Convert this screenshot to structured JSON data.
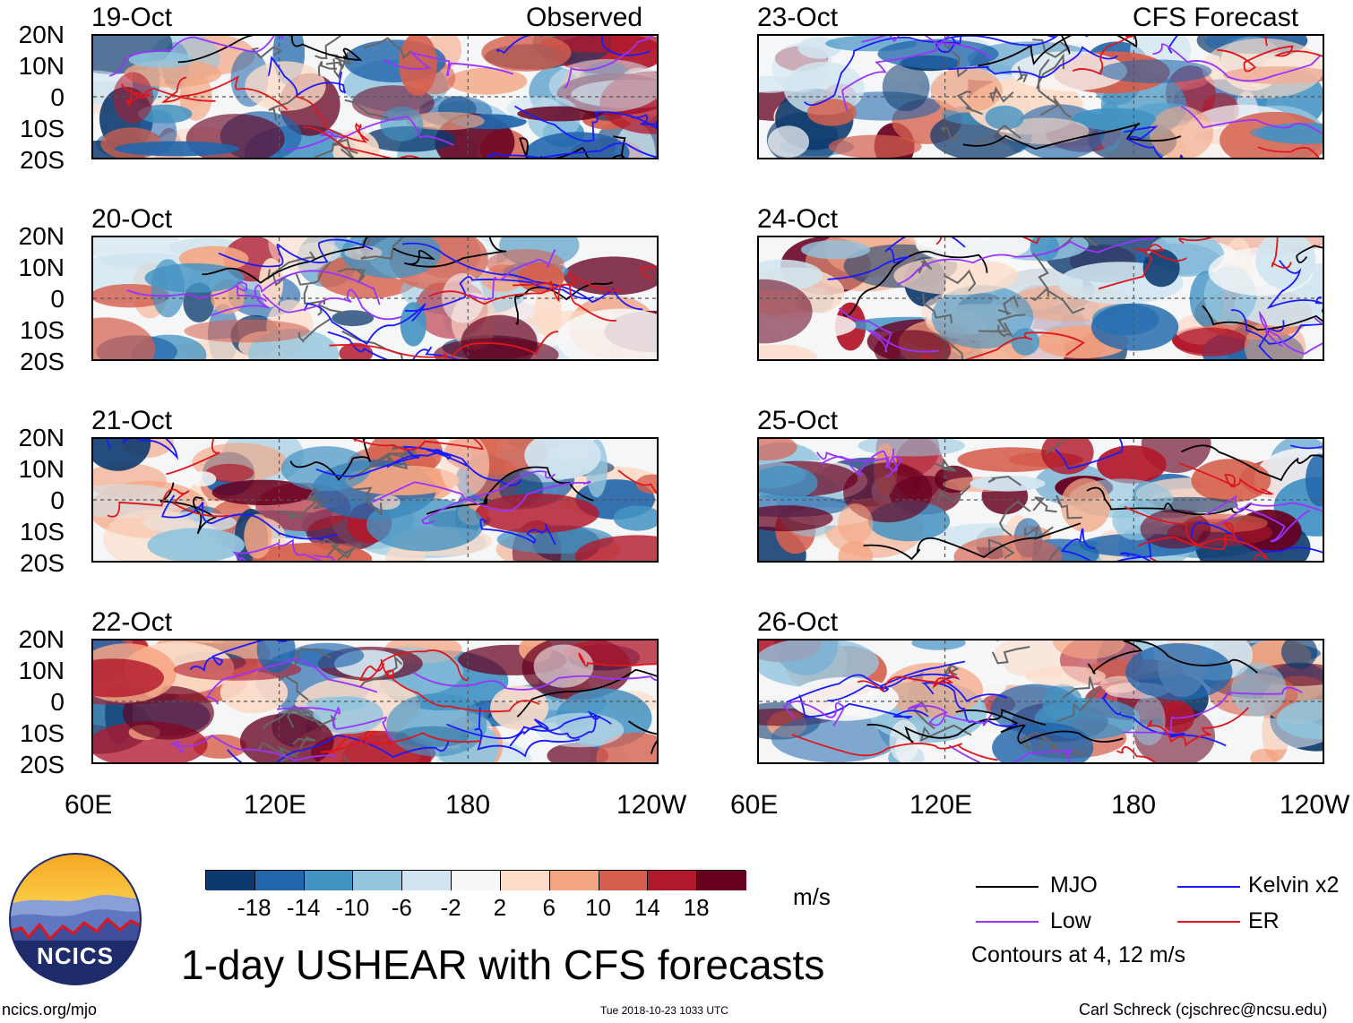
{
  "panels": {
    "p1": {
      "date": "19-Oct",
      "tag": "Observed"
    },
    "p2": {
      "date": "20-Oct"
    },
    "p3": {
      "date": "21-Oct"
    },
    "p4": {
      "date": "22-Oct"
    },
    "p5": {
      "date": "23-Oct",
      "tag": "CFS Forecast"
    },
    "p6": {
      "date": "24-Oct"
    },
    "p7": {
      "date": "25-Oct"
    },
    "p8": {
      "date": "26-Oct"
    }
  },
  "lat_labels": [
    "20N",
    "10N",
    "0",
    "10S",
    "20S"
  ],
  "lon_labels": [
    "60E",
    "120E",
    "180",
    "120W"
  ],
  "colorbar": {
    "labels": [
      "-18",
      "-14",
      "-10",
      "-6",
      "-2",
      "2",
      "6",
      "10",
      "14",
      "18"
    ],
    "colors": [
      "#0d3a6e",
      "#2166ac",
      "#4393c3",
      "#92c5de",
      "#d1e5f0",
      "#f7f7f7",
      "#fddbc7",
      "#f4a582",
      "#d6604d",
      "#b2182b",
      "#67001f"
    ],
    "unit": "m/s"
  },
  "legend": {
    "mjo": {
      "label": "MJO",
      "color": "#000000"
    },
    "kelvin": {
      "label": "Kelvin x2",
      "color": "#1a1aff"
    },
    "low": {
      "label": "Low",
      "color": "#9933ff"
    },
    "er": {
      "label": "ER",
      "color": "#e0161b"
    },
    "contours_note": "Contours at 4, 12 m/s"
  },
  "title": "1-day USHEAR with CFS forecasts",
  "logo": {
    "text": "NCICS"
  },
  "footer": {
    "url": "ncics.org/mjo",
    "timestamp": "Tue 2018-10-23 1033 UTC",
    "credit": "Carl Schreck (cjschrec@ncsu.edu)"
  }
}
